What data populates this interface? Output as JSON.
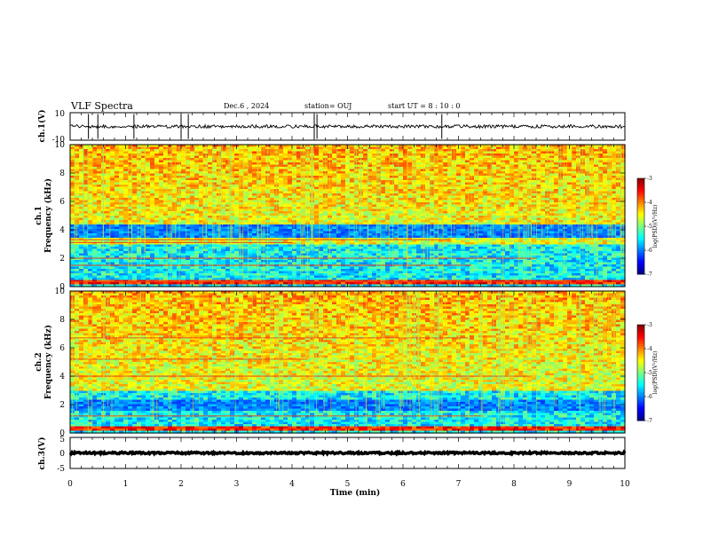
{
  "header": {
    "title": "VLF Spectra",
    "date": "Dec.6 , 2024",
    "station": "station= OUJ",
    "start_ut": "start  UT =  8 : 10 : 0"
  },
  "chart_data": [
    {
      "id": "ch1-waveform",
      "type": "line",
      "ylabel": "ch.1(V)",
      "ylim": [
        -10,
        10
      ],
      "yticks": [
        "10",
        "-10"
      ],
      "xlim": [
        0,
        10
      ],
      "series": [
        {
          "name": "",
          "color": "#000000",
          "baseline": 0,
          "noise_amplitude": 1.2,
          "spikes": [
            0.33,
            0.5,
            1.15,
            2.0,
            2.13,
            4.4,
            4.45,
            6.7
          ]
        }
      ]
    },
    {
      "id": "ch1-spectrogram",
      "type": "heatmap",
      "ylabel": "ch.1\nFrequency (kHz)",
      "ylim": [
        0,
        10
      ],
      "yticks": [
        "0",
        "2",
        "4",
        "6",
        "8",
        "10"
      ],
      "xlim": [
        0,
        10
      ],
      "colorbar": {
        "label": "log(PSD)(V²/Hz)",
        "range": [
          -7,
          -3
        ],
        "ticks": [
          "-3",
          "-4",
          "-5",
          "-6",
          "-7"
        ]
      },
      "features": {
        "dark_band_khz": [
          3.5,
          4.3
        ],
        "bright_band_khz": [
          0.1,
          0.4
        ],
        "red_lines_khz": [
          0.35,
          1.5,
          2.0,
          3.1,
          3.3
        ],
        "sferic_density": "high"
      }
    },
    {
      "id": "ch2-spectrogram",
      "type": "heatmap",
      "ylabel": "ch.2\nFrequency (kHz)",
      "ylim": [
        0,
        10
      ],
      "yticks": [
        "0",
        "2",
        "4",
        "6",
        "8",
        "10"
      ],
      "xlim": [
        0,
        10
      ],
      "colorbar": {
        "label": "log(PSD)(V²/Hz)",
        "range": [
          -7,
          -3
        ],
        "ticks": [
          "-3",
          "-4",
          "-5",
          "-6",
          "-7"
        ]
      },
      "features": {
        "dark_band_khz": [
          1.5,
          2.3
        ],
        "bright_band_khz": [
          0.1,
          0.4
        ],
        "red_lines_khz": [
          1.2,
          4.0,
          5.2,
          6.7
        ],
        "sferic_density": "high"
      }
    },
    {
      "id": "ch3-waveform",
      "type": "line",
      "ylabel": "ch.3(V)",
      "ylim": [
        -5,
        5
      ],
      "yticks": [
        "5",
        "0",
        "-5"
      ],
      "xlim": [
        0,
        10
      ],
      "series": [
        {
          "name": "",
          "color": "#000000",
          "baseline": 0,
          "noise_amplitude": 0.3,
          "spikes": []
        }
      ]
    }
  ],
  "x_axis": {
    "label": "Time (min)",
    "ticks": [
      "0",
      "1",
      "2",
      "3",
      "4",
      "5",
      "6",
      "7",
      "8",
      "9",
      "10"
    ]
  }
}
